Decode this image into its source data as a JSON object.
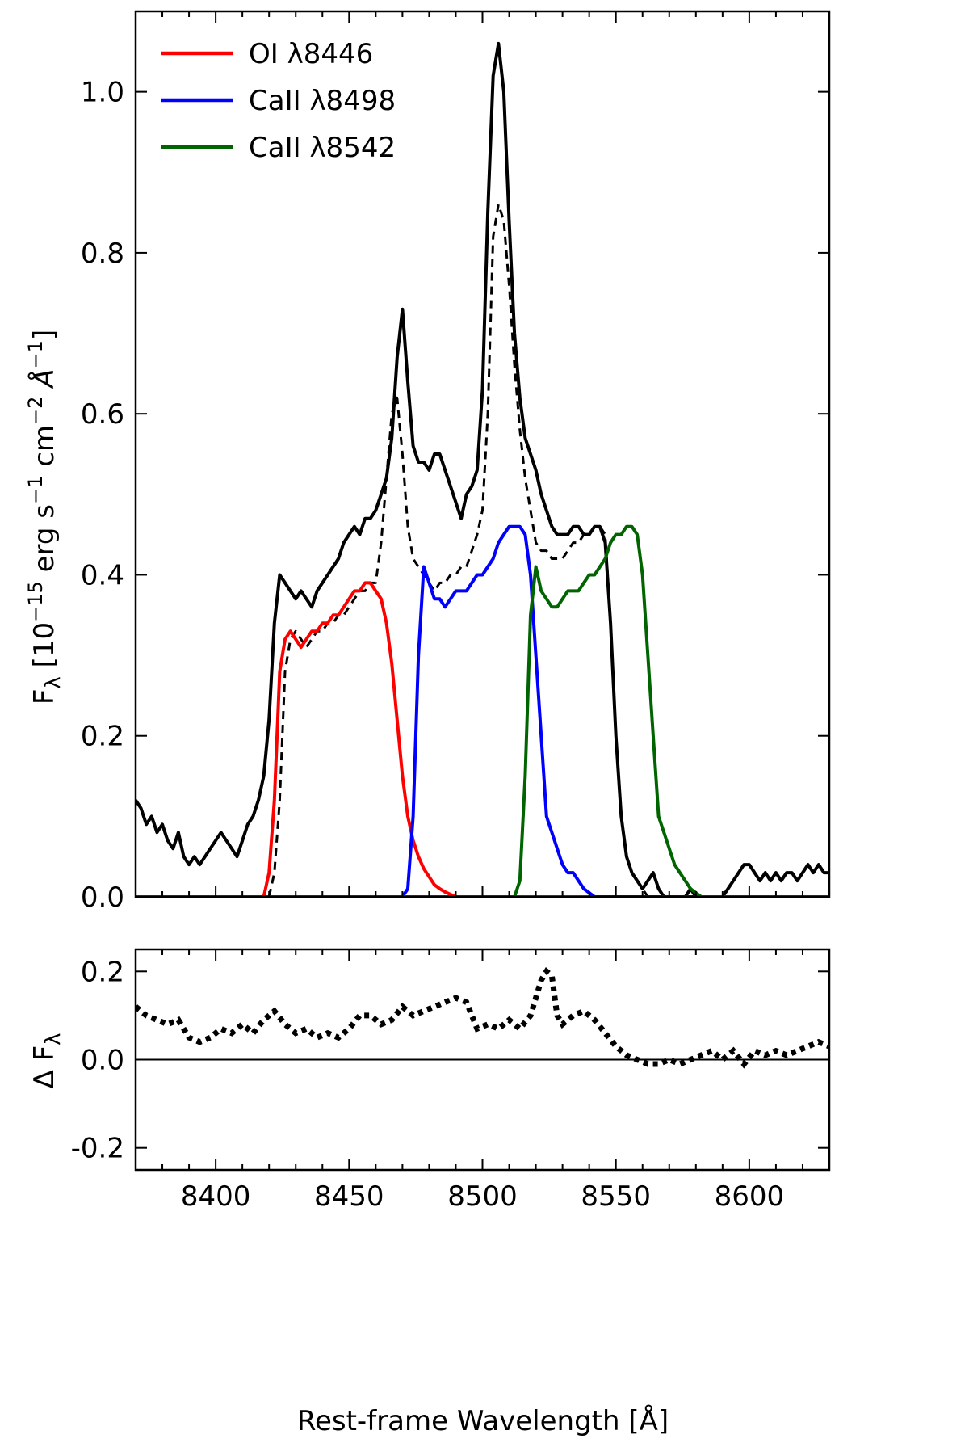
{
  "chart_data": [
    {
      "type": "line",
      "panel": "main",
      "xlim": [
        8370,
        8630
      ],
      "ylim": [
        0.0,
        1.1
      ],
      "xlabel": "",
      "ylabel": "F_λ [10^-15 erg s^-1 cm^-2 Å^-1]",
      "ylabel_parts": {
        "f": "F",
        "sub": "λ",
        "open": " [10",
        "e1": "−15",
        "t2": " erg s",
        "e2": "−1",
        "t3": " cm",
        "e3": "−2",
        "t4": " Å",
        "e4": "−1",
        "close": "]"
      },
      "yticks": [
        "0.0",
        "0.2",
        "0.4",
        "0.6",
        "0.8",
        "1.0"
      ],
      "grid": false,
      "legend": {
        "placement": "top-left",
        "entries": [
          {
            "label": "OI λ8446",
            "color": "#ff0000"
          },
          {
            "label": "CaII λ8498",
            "color": "#0000ff"
          },
          {
            "label": "CaII λ8542",
            "color": "#006400"
          }
        ]
      },
      "series": [
        {
          "style": "solid",
          "color": "#000000",
          "x": [
            8370,
            8372,
            8374,
            8376,
            8378,
            8380,
            8382,
            8384,
            8386,
            8388,
            8390,
            8392,
            8394,
            8396,
            8398,
            8400,
            8402,
            8404,
            8406,
            8408,
            8410,
            8412,
            8414,
            8416,
            8418,
            8420,
            8422,
            8424,
            8426,
            8428,
            8430,
            8432,
            8434,
            8436,
            8438,
            8440,
            8442,
            8444,
            8446,
            8448,
            8450,
            8452,
            8454,
            8456,
            8458,
            8460,
            8462,
            8464,
            8466,
            8468,
            8470,
            8472,
            8474,
            8476,
            8478,
            8480,
            8482,
            8484,
            8486,
            8488,
            8490,
            8492,
            8494,
            8496,
            8498,
            8500,
            8502,
            8504,
            8506,
            8508,
            8510,
            8512,
            8514,
            8516,
            8518,
            8520,
            8522,
            8524,
            8526,
            8528,
            8530,
            8532,
            8534,
            8536,
            8538,
            8540,
            8542,
            8544,
            8546,
            8548,
            8550,
            8552,
            8554,
            8556,
            8558,
            8560,
            8562,
            8564,
            8566,
            8568,
            8570,
            8572,
            8574,
            8576,
            8578,
            8580,
            8582,
            8584,
            8586,
            8588,
            8590,
            8592,
            8594,
            8596,
            8598,
            8600,
            8602,
            8604,
            8606,
            8608,
            8610,
            8612,
            8614,
            8616,
            8618,
            8620,
            8622,
            8624,
            8626,
            8628,
            8630
          ],
          "y": [
            0.12,
            0.11,
            0.09,
            0.1,
            0.08,
            0.09,
            0.07,
            0.06,
            0.08,
            0.05,
            0.04,
            0.05,
            0.04,
            0.05,
            0.06,
            0.07,
            0.08,
            0.07,
            0.06,
            0.05,
            0.07,
            0.09,
            0.1,
            0.12,
            0.15,
            0.22,
            0.34,
            0.4,
            0.39,
            0.38,
            0.37,
            0.38,
            0.37,
            0.36,
            0.38,
            0.39,
            0.4,
            0.41,
            0.42,
            0.44,
            0.45,
            0.46,
            0.45,
            0.47,
            0.47,
            0.48,
            0.5,
            0.52,
            0.57,
            0.67,
            0.73,
            0.64,
            0.56,
            0.54,
            0.54,
            0.53,
            0.55,
            0.55,
            0.53,
            0.51,
            0.49,
            0.47,
            0.5,
            0.51,
            0.53,
            0.63,
            0.85,
            1.02,
            1.06,
            1.0,
            0.84,
            0.7,
            0.62,
            0.57,
            0.55,
            0.53,
            0.5,
            0.48,
            0.46,
            0.45,
            0.45,
            0.45,
            0.46,
            0.46,
            0.45,
            0.45,
            0.46,
            0.46,
            0.44,
            0.34,
            0.2,
            0.1,
            0.05,
            0.03,
            0.02,
            0.01,
            0.02,
            0.03,
            0.01,
            0.0,
            0.0,
            0.0,
            0.0,
            0.0,
            0.01,
            0.0,
            0.0,
            0.0,
            0.0,
            0.0,
            0.0,
            0.01,
            0.02,
            0.03,
            0.04,
            0.04,
            0.03,
            0.02,
            0.03,
            0.02,
            0.03,
            0.02,
            0.03,
            0.03,
            0.02,
            0.03,
            0.04,
            0.03,
            0.04,
            0.03,
            0.03
          ]
        },
        {
          "style": "dashed",
          "color": "#000000",
          "x": [
            8420,
            8422,
            8424,
            8426,
            8428,
            8430,
            8432,
            8434,
            8436,
            8438,
            8440,
            8442,
            8444,
            8446,
            8448,
            8450,
            8452,
            8454,
            8456,
            8458,
            8460,
            8462,
            8464,
            8466,
            8468,
            8470,
            8472,
            8474,
            8476,
            8478,
            8480,
            8482,
            8484,
            8486,
            8488,
            8490,
            8492,
            8494,
            8496,
            8498,
            8500,
            8502,
            8504,
            8506,
            8508,
            8510,
            8512,
            8514,
            8516,
            8518,
            8520,
            8522,
            8524,
            8526,
            8528,
            8530,
            8532,
            8534,
            8536,
            8538,
            8540,
            8542,
            8544,
            8546,
            8548,
            8550,
            8552,
            8554,
            8556,
            8558,
            8560,
            8562,
            8564,
            8566,
            8568,
            8570,
            8572,
            8574,
            8576,
            8578,
            8580,
            8582,
            8584,
            8586,
            8588,
            8590
          ],
          "y": [
            0.0,
            0.03,
            0.12,
            0.28,
            0.32,
            0.33,
            0.32,
            0.31,
            0.32,
            0.33,
            0.33,
            0.34,
            0.34,
            0.35,
            0.35,
            0.36,
            0.37,
            0.38,
            0.38,
            0.39,
            0.39,
            0.44,
            0.52,
            0.6,
            0.62,
            0.55,
            0.46,
            0.42,
            0.41,
            0.4,
            0.39,
            0.38,
            0.39,
            0.39,
            0.4,
            0.4,
            0.41,
            0.41,
            0.43,
            0.45,
            0.48,
            0.6,
            0.82,
            0.86,
            0.84,
            0.76,
            0.66,
            0.58,
            0.52,
            0.48,
            0.44,
            0.43,
            0.43,
            0.42,
            0.42,
            0.42,
            0.43,
            0.44,
            0.44,
            0.45,
            0.45,
            0.46,
            0.46,
            0.45,
            0.34,
            0.2,
            0.1,
            0.05,
            0.03,
            0.02,
            0.01,
            0.0,
            0.0,
            0.0,
            0.0,
            0.0,
            0.0,
            0.0,
            0.0,
            0.0,
            0.0,
            0.0,
            0.0,
            0.0,
            0.0,
            0.0
          ]
        },
        {
          "style": "solid",
          "color": "#ff0000",
          "legend_index": 0,
          "x": [
            8370,
            8418,
            8420,
            8422,
            8424,
            8426,
            8428,
            8430,
            8432,
            8434,
            8436,
            8438,
            8440,
            8442,
            8444,
            8446,
            8448,
            8450,
            8452,
            8454,
            8456,
            8458,
            8460,
            8462,
            8464,
            8466,
            8468,
            8470,
            8472,
            8474,
            8476,
            8478,
            8480,
            8482,
            8484,
            8486,
            8488,
            8490,
            8492,
            8494,
            8496,
            8498,
            8500,
            8630
          ],
          "y": [
            0.0,
            0.0,
            0.03,
            0.12,
            0.28,
            0.32,
            0.33,
            0.32,
            0.31,
            0.32,
            0.33,
            0.33,
            0.34,
            0.34,
            0.35,
            0.35,
            0.36,
            0.37,
            0.38,
            0.38,
            0.39,
            0.39,
            0.38,
            0.37,
            0.34,
            0.29,
            0.22,
            0.15,
            0.1,
            0.07,
            0.05,
            0.035,
            0.025,
            0.015,
            0.01,
            0.006,
            0.003,
            0.0,
            0.0,
            0.0,
            0.0,
            0.0,
            0.0,
            0.0
          ]
        },
        {
          "style": "solid",
          "color": "#0000ff",
          "legend_index": 1,
          "x": [
            8370,
            8470,
            8472,
            8474,
            8476,
            8478,
            8480,
            8482,
            8484,
            8486,
            8488,
            8490,
            8492,
            8494,
            8496,
            8498,
            8500,
            8502,
            8504,
            8506,
            8508,
            8510,
            8512,
            8514,
            8516,
            8518,
            8520,
            8522,
            8524,
            8526,
            8528,
            8530,
            8532,
            8534,
            8536,
            8538,
            8540,
            8542,
            8544,
            8546,
            8548,
            8550,
            8630
          ],
          "y": [
            0.0,
            0.0,
            0.01,
            0.1,
            0.3,
            0.41,
            0.39,
            0.37,
            0.37,
            0.36,
            0.37,
            0.38,
            0.38,
            0.38,
            0.39,
            0.4,
            0.4,
            0.41,
            0.42,
            0.44,
            0.45,
            0.46,
            0.46,
            0.46,
            0.45,
            0.4,
            0.3,
            0.2,
            0.1,
            0.08,
            0.06,
            0.04,
            0.03,
            0.03,
            0.02,
            0.01,
            0.005,
            0.0,
            0.0,
            0.0,
            0.0,
            0.0,
            0.0
          ]
        },
        {
          "style": "solid",
          "color": "#006400",
          "legend_index": 2,
          "x": [
            8370,
            8512,
            8514,
            8516,
            8518,
            8520,
            8522,
            8524,
            8526,
            8528,
            8530,
            8532,
            8534,
            8536,
            8538,
            8540,
            8542,
            8544,
            8546,
            8548,
            8550,
            8552,
            8554,
            8556,
            8558,
            8560,
            8562,
            8564,
            8566,
            8568,
            8570,
            8572,
            8574,
            8576,
            8578,
            8580,
            8582,
            8584,
            8586,
            8588,
            8590,
            8630
          ],
          "y": [
            0.0,
            0.0,
            0.02,
            0.15,
            0.35,
            0.41,
            0.38,
            0.37,
            0.36,
            0.36,
            0.37,
            0.38,
            0.38,
            0.38,
            0.39,
            0.4,
            0.4,
            0.41,
            0.42,
            0.44,
            0.45,
            0.45,
            0.46,
            0.46,
            0.45,
            0.4,
            0.3,
            0.2,
            0.1,
            0.08,
            0.06,
            0.04,
            0.03,
            0.02,
            0.01,
            0.005,
            0.0,
            0.0,
            0.0,
            0.0,
            0.0,
            0.0
          ]
        }
      ]
    },
    {
      "type": "line",
      "panel": "residual",
      "xlim": [
        8370,
        8630
      ],
      "ylim": [
        -0.25,
        0.25
      ],
      "xlabel": "Rest-frame Wavelength [Å]",
      "ylabel": "Δ F_λ",
      "ylabel_parts": {
        "d": "Δ F",
        "sub": "λ"
      },
      "yticks": [
        "-0.2",
        "0.0",
        "0.2"
      ],
      "xticks": [
        "8400",
        "8450",
        "8500",
        "8550",
        "8600"
      ],
      "reference_line": 0.0,
      "series": [
        {
          "style": "dotted",
          "color": "#000000",
          "x": [
            8370,
            8374,
            8378,
            8382,
            8386,
            8390,
            8394,
            8398,
            8402,
            8406,
            8410,
            8414,
            8418,
            8422,
            8426,
            8430,
            8434,
            8438,
            8442,
            8446,
            8450,
            8454,
            8458,
            8462,
            8466,
            8470,
            8474,
            8478,
            8482,
            8486,
            8490,
            8494,
            8498,
            8502,
            8506,
            8510,
            8514,
            8518,
            8522,
            8524,
            8526,
            8528,
            8530,
            8534,
            8538,
            8542,
            8546,
            8550,
            8554,
            8558,
            8562,
            8566,
            8570,
            8574,
            8578,
            8582,
            8586,
            8590,
            8594,
            8598,
            8602,
            8606,
            8610,
            8614,
            8618,
            8622,
            8626,
            8630
          ],
          "y": [
            0.12,
            0.1,
            0.09,
            0.08,
            0.09,
            0.05,
            0.04,
            0.05,
            0.07,
            0.06,
            0.08,
            0.06,
            0.09,
            0.11,
            0.08,
            0.06,
            0.07,
            0.05,
            0.06,
            0.05,
            0.07,
            0.1,
            0.1,
            0.08,
            0.09,
            0.12,
            0.1,
            0.11,
            0.12,
            0.13,
            0.14,
            0.13,
            0.07,
            0.08,
            0.07,
            0.09,
            0.07,
            0.1,
            0.18,
            0.2,
            0.19,
            0.1,
            0.08,
            0.1,
            0.11,
            0.09,
            0.06,
            0.03,
            0.01,
            0.0,
            -0.01,
            -0.01,
            0.0,
            -0.01,
            0.0,
            0.01,
            0.02,
            0.0,
            0.02,
            -0.01,
            0.02,
            0.01,
            0.02,
            0.01,
            0.02,
            0.03,
            0.04,
            0.03
          ]
        }
      ]
    }
  ]
}
